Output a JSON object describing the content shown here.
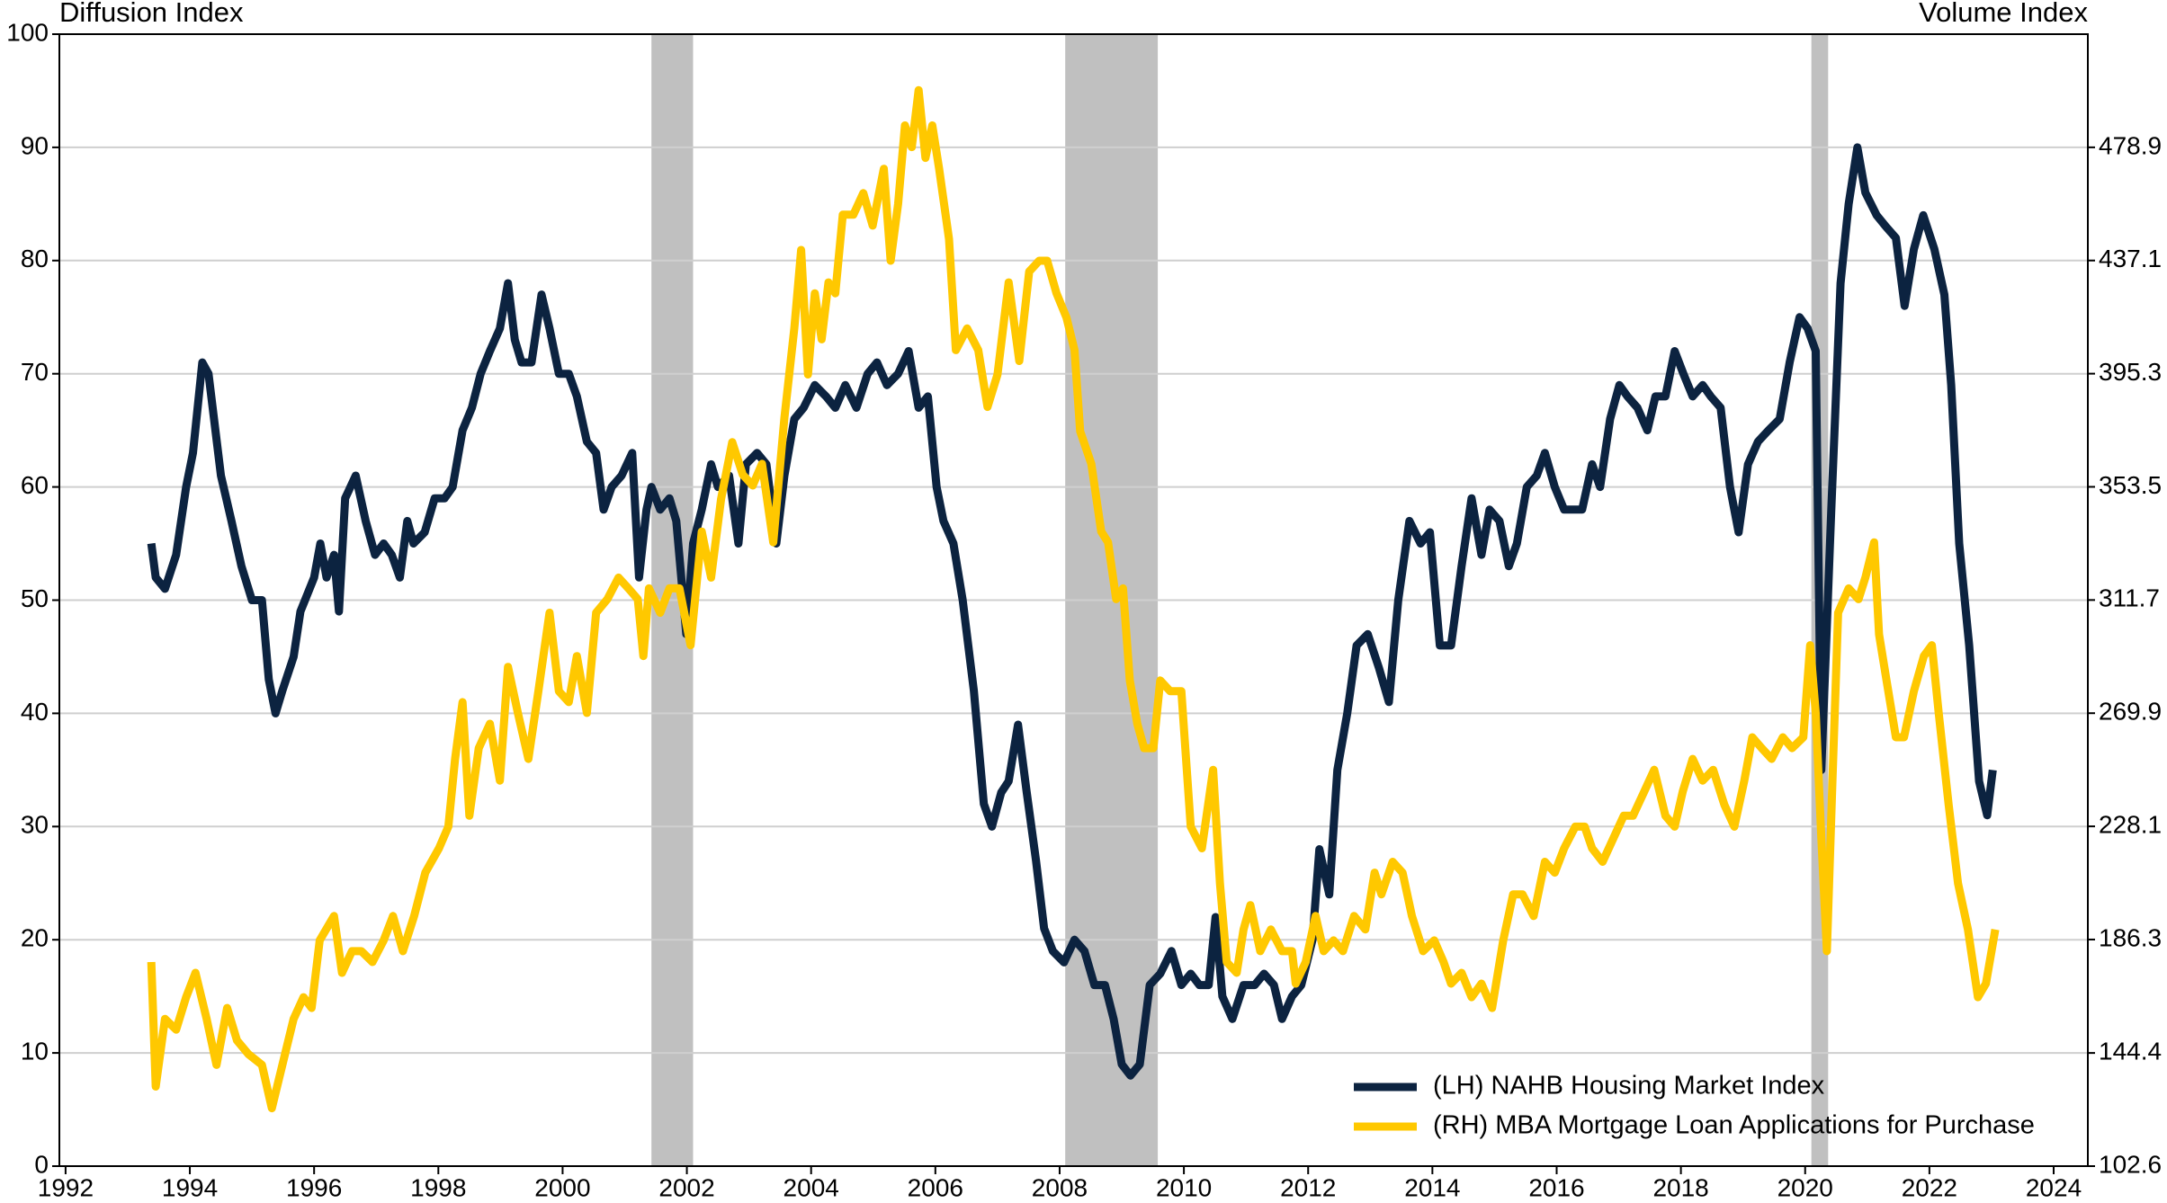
{
  "chart_data": {
    "type": "line",
    "y_label": "Diffusion Index",
    "y2_label": "Volume Index",
    "xlim": [
      1991.9,
      2024.55
    ],
    "xticks": [
      1992,
      1994,
      1996,
      1998,
      2000,
      2002,
      2004,
      2006,
      2008,
      2010,
      2012,
      2014,
      2016,
      2018,
      2020,
      2022,
      2024
    ],
    "ylim": [
      0,
      100
    ],
    "yticks": [
      0,
      10,
      20,
      30,
      40,
      50,
      60,
      70,
      80,
      90,
      100
    ],
    "y2lim": [
      102.6,
      520.7
    ],
    "y2ticks": [
      102.6,
      144.4,
      186.3,
      228.1,
      269.9,
      311.7,
      353.5,
      395.3,
      437.1,
      478.9
    ],
    "grid": true,
    "legend": "lower right",
    "recessions": [
      [
        2001.43,
        2002.1
      ],
      [
        2008.09,
        2009.58
      ],
      [
        2020.1,
        2020.37
      ]
    ],
    "recession_color": "#c0c0c0",
    "series": [
      {
        "name": "(LH) NAHB Housing Market Index",
        "color": "#0c2340",
        "axis": "y",
        "x": [
          1993.38,
          1993.45,
          1993.6,
          1993.78,
          1993.94,
          1994.05,
          1994.2,
          1994.3,
          1994.5,
          1994.67,
          1994.83,
          1995.0,
          1995.16,
          1995.27,
          1995.38,
          1995.49,
          1995.67,
          1995.78,
          1996.0,
          1996.1,
          1996.2,
          1996.32,
          1996.4,
          1996.5,
          1996.67,
          1996.83,
          1996.98,
          1997.12,
          1997.25,
          1997.38,
          1997.5,
          1997.6,
          1997.78,
          1997.94,
          1998.1,
          1998.23,
          1998.39,
          1998.54,
          1998.68,
          1998.83,
          1998.99,
          1999.12,
          1999.23,
          1999.34,
          1999.5,
          1999.66,
          1999.79,
          1999.94,
          2000.1,
          2000.23,
          2000.39,
          2000.54,
          2000.66,
          2000.79,
          2000.95,
          2001.12,
          2001.23,
          2001.35,
          2001.43,
          2001.57,
          2001.72,
          2001.83,
          2001.99,
          2002.1,
          2002.24,
          2002.39,
          2002.5,
          2002.68,
          2002.83,
          2002.95,
          2003.13,
          2003.28,
          2003.44,
          2003.57,
          2003.73,
          2003.88,
          2004.06,
          2004.24,
          2004.39,
          2004.55,
          2004.73,
          2004.91,
          2005.06,
          2005.22,
          2005.4,
          2005.57,
          2005.73,
          2005.88,
          2006.02,
          2006.13,
          2006.29,
          2006.44,
          2006.62,
          2006.78,
          2006.91,
          2007.06,
          2007.18,
          2007.33,
          2007.47,
          2007.62,
          2007.75,
          2007.89,
          2008.07,
          2008.24,
          2008.4,
          2008.56,
          2008.73,
          2008.87,
          2009.0,
          2009.14,
          2009.29,
          2009.45,
          2009.62,
          2009.8,
          2009.96,
          2010.11,
          2010.25,
          2010.4,
          2010.51,
          2010.62,
          2010.78,
          2010.96,
          2011.14,
          2011.29,
          2011.45,
          2011.58,
          2011.74,
          2011.89,
          2012.07,
          2012.18,
          2012.34,
          2012.47,
          2012.63,
          2012.78,
          2012.96,
          2013.14,
          2013.3,
          2013.45,
          2013.63,
          2013.81,
          2013.96,
          2014.12,
          2014.3,
          2014.47,
          2014.63,
          2014.79,
          2014.92,
          2015.08,
          2015.23,
          2015.36,
          2015.52,
          2015.68,
          2015.81,
          2015.97,
          2016.12,
          2016.25,
          2016.41,
          2016.57,
          2016.7,
          2016.86,
          2017.01,
          2017.14,
          2017.3,
          2017.46,
          2017.59,
          2017.75,
          2017.9,
          2018.04,
          2018.19,
          2018.35,
          2018.48,
          2018.64,
          2018.79,
          2018.93,
          2019.08,
          2019.24,
          2019.41,
          2019.59,
          2019.75,
          2019.91,
          2020.04,
          2020.17,
          2020.26,
          2020.42,
          2020.57,
          2020.7,
          2020.84,
          2020.97,
          2021.15,
          2021.3,
          2021.46,
          2021.6,
          2021.75,
          2021.9,
          2022.08,
          2022.24,
          2022.35,
          2022.48,
          2022.64,
          2022.8,
          2022.93,
          2023.02
        ],
        "values": [
          55,
          52,
          51,
          54,
          60,
          63,
          71,
          70,
          61,
          57,
          53,
          50,
          50,
          43,
          40,
          42,
          45,
          49,
          52,
          55,
          52,
          54,
          49,
          59,
          61,
          57,
          54,
          55,
          54,
          52,
          57,
          55,
          56,
          59,
          59,
          60,
          65,
          67,
          70,
          72,
          74,
          78,
          73,
          71,
          71,
          77,
          74,
          70,
          70,
          68,
          64,
          63,
          58,
          60,
          61,
          63,
          52,
          58,
          60,
          58,
          59,
          57,
          47,
          55,
          58,
          62,
          60,
          61,
          55,
          62,
          63,
          62,
          55,
          61,
          66,
          67,
          69,
          68,
          67,
          69,
          67,
          70,
          71,
          69,
          70,
          72,
          67,
          68,
          60,
          57,
          55,
          50,
          42,
          32,
          30,
          33,
          34,
          39,
          33,
          27,
          21,
          19,
          18,
          20,
          19,
          16,
          16,
          13,
          9,
          8,
          9,
          16,
          17,
          19,
          16,
          17,
          16,
          16,
          22,
          15,
          13,
          16,
          16,
          17,
          16,
          13,
          15,
          16,
          20,
          28,
          24,
          35,
          40,
          46,
          47,
          44,
          41,
          50,
          57,
          55,
          56,
          46,
          46,
          53,
          59,
          54,
          58,
          57,
          53,
          55,
          60,
          61,
          63,
          60,
          58,
          58,
          58,
          62,
          60,
          66,
          69,
          68,
          67,
          65,
          68,
          68,
          72,
          70,
          68,
          69,
          68,
          67,
          60,
          56,
          62,
          64,
          65,
          66,
          71,
          75,
          74,
          72,
          35,
          58,
          78,
          85,
          90,
          86,
          84,
          83,
          82,
          76,
          81,
          84,
          81,
          77,
          69,
          55,
          46,
          34,
          31,
          35
        ]
      },
      {
        "name": "(RH) MBA Mortgage Loan Applications for Purchase",
        "color": "#ffc800",
        "axis": "y2",
        "x": [
          1993.38,
          1993.45,
          1993.6,
          1993.78,
          1993.94,
          1994.09,
          1994.27,
          1994.43,
          1994.6,
          1994.76,
          1994.94,
          1995.16,
          1995.32,
          1995.49,
          1995.67,
          1995.83,
          1995.96,
          1996.09,
          1996.32,
          1996.45,
          1996.61,
          1996.76,
          1996.94,
          1997.12,
          1997.27,
          1997.43,
          1997.61,
          1997.79,
          1998.01,
          1998.16,
          1998.27,
          1998.39,
          1998.5,
          1998.65,
          1998.83,
          1998.99,
          1999.12,
          1999.28,
          1999.45,
          1999.61,
          1999.79,
          1999.94,
          2000.1,
          2000.23,
          2000.39,
          2000.54,
          2000.72,
          2000.9,
          2001.06,
          2001.21,
          2001.3,
          2001.39,
          2001.57,
          2001.72,
          2001.88,
          2002.06,
          2002.24,
          2002.39,
          2002.55,
          2002.73,
          2002.9,
          2003.06,
          2003.21,
          2003.39,
          2003.57,
          2003.73,
          2003.84,
          2003.95,
          2004.06,
          2004.17,
          2004.28,
          2004.39,
          2004.51,
          2004.68,
          2004.84,
          2004.99,
          2005.17,
          2005.28,
          2005.4,
          2005.51,
          2005.62,
          2005.73,
          2005.84,
          2005.95,
          2006.06,
          2006.22,
          2006.33,
          2006.51,
          2006.69,
          2006.84,
          2007.0,
          2007.18,
          2007.35,
          2007.51,
          2007.67,
          2007.8,
          2007.95,
          2008.11,
          2008.24,
          2008.33,
          2008.51,
          2008.67,
          2008.78,
          2008.91,
          2009.02,
          2009.13,
          2009.25,
          2009.36,
          2009.51,
          2009.62,
          2009.78,
          2009.96,
          2010.11,
          2010.29,
          2010.47,
          2010.58,
          2010.69,
          2010.85,
          2010.96,
          2011.07,
          2011.23,
          2011.4,
          2011.58,
          2011.74,
          2011.8,
          2011.96,
          2012.12,
          2012.25,
          2012.41,
          2012.56,
          2012.74,
          2012.92,
          2013.07,
          2013.18,
          2013.36,
          2013.52,
          2013.67,
          2013.85,
          2014.03,
          2014.18,
          2014.3,
          2014.47,
          2014.63,
          2014.79,
          2014.96,
          2015.14,
          2015.3,
          2015.45,
          2015.63,
          2015.81,
          2015.97,
          2016.12,
          2016.3,
          2016.45,
          2016.57,
          2016.74,
          2016.92,
          2017.08,
          2017.23,
          2017.41,
          2017.57,
          2017.75,
          2017.9,
          2018.03,
          2018.19,
          2018.35,
          2018.52,
          2018.7,
          2018.86,
          2019.02,
          2019.15,
          2019.3,
          2019.46,
          2019.64,
          2019.79,
          2019.97,
          2020.08,
          2020.17,
          2020.26,
          2020.35,
          2020.44,
          2020.53,
          2020.7,
          2020.86,
          2020.97,
          2021.11,
          2021.19,
          2021.31,
          2021.46,
          2021.59,
          2021.75,
          2021.91,
          2022.04,
          2022.15,
          2022.31,
          2022.46,
          2022.62,
          2022.78,
          2022.91,
          2023.06
        ],
        "values": [
          178,
          132,
          157,
          153,
          165,
          174,
          157,
          140,
          161,
          149,
          144,
          140,
          124,
          140,
          157,
          165,
          161,
          186,
          195,
          174,
          182,
          182,
          178,
          186,
          195,
          182,
          195,
          211,
          220,
          228,
          253,
          274,
          232,
          257,
          266,
          245,
          287,
          270,
          253,
          278,
          307,
          278,
          274,
          291,
          270,
          307,
          312,
          320,
          316,
          312,
          291,
          316,
          307,
          316,
          316,
          295,
          337,
          320,
          349,
          370,
          358,
          354,
          362,
          333,
          379,
          412,
          441,
          395,
          425,
          408,
          429,
          425,
          454,
          454,
          462,
          450,
          471,
          437,
          458,
          487,
          479,
          500,
          475,
          487,
          471,
          445,
          404,
          412,
          404,
          383,
          395,
          429,
          400,
          433,
          437,
          437,
          425,
          416,
          404,
          374,
          362,
          337,
          333,
          312,
          316,
          282,
          266,
          257,
          257,
          282,
          278,
          278,
          228,
          220,
          249,
          207,
          178,
          174,
          190,
          199,
          182,
          190,
          182,
          182,
          170,
          178,
          195,
          182,
          186,
          182,
          195,
          190,
          211,
          203,
          215,
          211,
          195,
          182,
          186,
          178,
          170,
          174,
          165,
          170,
          161,
          186,
          203,
          203,
          195,
          215,
          211,
          220,
          228,
          228,
          220,
          215,
          224,
          232,
          232,
          241,
          249,
          232,
          228,
          241,
          253,
          245,
          249,
          236,
          228,
          245,
          261,
          257,
          253,
          261,
          257,
          261,
          295,
          270,
          224,
          182,
          245,
          307,
          316,
          312,
          320,
          333,
          299,
          282,
          261,
          261,
          278,
          291,
          295,
          270,
          236,
          207,
          190,
          165,
          170,
          190
        ]
      }
    ]
  }
}
